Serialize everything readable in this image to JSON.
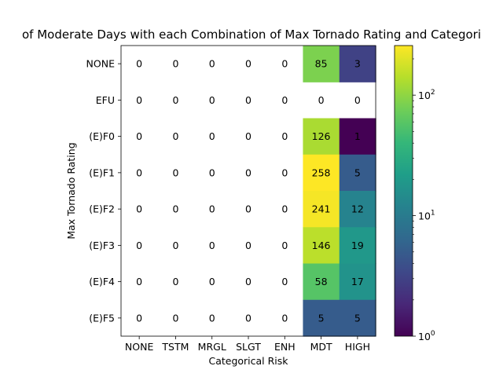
{
  "chart_data": {
    "type": "heatmap",
    "title": "of Moderate Days with each Combination of Max Tornado Rating and Categori",
    "xlabel": "Categorical Risk",
    "ylabel": "Max Tornado Rating",
    "x_categories": [
      "NONE",
      "TSTM",
      "MRGL",
      "SLGT",
      "ENH",
      "MDT",
      "HIGH"
    ],
    "y_categories": [
      "NONE",
      "EFU",
      "(E)F0",
      "(E)F1",
      "(E)F2",
      "(E)F3",
      "(E)F4",
      "(E)F5"
    ],
    "values": [
      [
        0,
        0,
        0,
        0,
        0,
        85,
        3
      ],
      [
        0,
        0,
        0,
        0,
        0,
        0,
        0
      ],
      [
        0,
        0,
        0,
        0,
        0,
        126,
        1
      ],
      [
        0,
        0,
        0,
        0,
        0,
        258,
        5
      ],
      [
        0,
        0,
        0,
        0,
        0,
        241,
        12
      ],
      [
        0,
        0,
        0,
        0,
        0,
        146,
        19
      ],
      [
        0,
        0,
        0,
        0,
        0,
        58,
        17
      ],
      [
        0,
        0,
        0,
        0,
        0,
        5,
        5
      ]
    ],
    "color_scale": "log",
    "colormap": "viridis",
    "colorbar": {
      "range": [
        1,
        258
      ],
      "ticks": [
        {
          "value": 1,
          "base": "10",
          "exp": "0"
        },
        {
          "value": 10,
          "base": "10",
          "exp": "1"
        },
        {
          "value": 100,
          "base": "10",
          "exp": "2"
        }
      ]
    },
    "grid": false
  }
}
